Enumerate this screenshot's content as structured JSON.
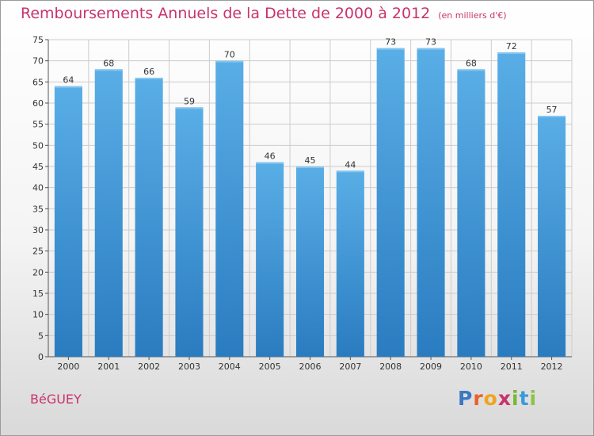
{
  "chart_data": {
    "type": "bar",
    "title": "Remboursements Annuels de la Dette de 2000 à 2012",
    "unit_note": "(en milliers d'€)",
    "categories": [
      "2000",
      "2001",
      "2002",
      "2003",
      "2004",
      "2005",
      "2006",
      "2007",
      "2008",
      "2009",
      "2010",
      "2011",
      "2012"
    ],
    "values": [
      64,
      68,
      66,
      59,
      70,
      46,
      45,
      44,
      73,
      73,
      68,
      72,
      57
    ],
    "ylim": [
      0,
      75
    ],
    "yticks": [
      0,
      5,
      10,
      15,
      20,
      25,
      30,
      35,
      40,
      45,
      50,
      55,
      60,
      65,
      70,
      75
    ],
    "grid": true,
    "colors": {
      "bar_light": "#5aaee6",
      "bar_dark": "#2a7cc0",
      "title": "#c8336c",
      "grid": "#cccccc"
    }
  },
  "commune": "BéGUEY",
  "logo": {
    "letters": [
      {
        "char": "P",
        "color": "#3a78c3"
      },
      {
        "char": "r",
        "color": "#e8612c"
      },
      {
        "char": "o",
        "color": "#f2a31b"
      },
      {
        "char": "x",
        "color": "#c8336c"
      },
      {
        "char": "i",
        "color": "#78b735"
      },
      {
        "char": "t",
        "color": "#3a9ad9"
      },
      {
        "char": "i",
        "color": "#8bc34a"
      }
    ]
  }
}
